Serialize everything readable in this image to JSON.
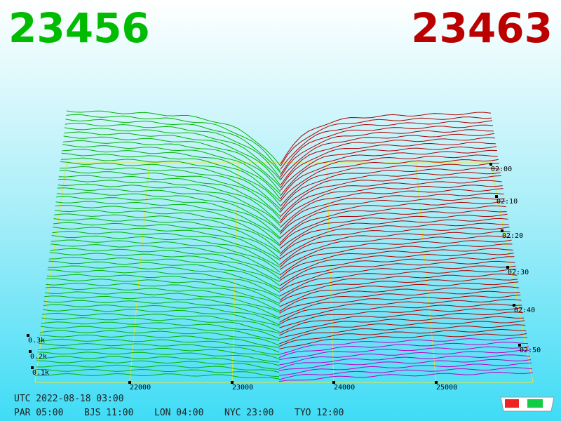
{
  "header": {
    "bid": "23456",
    "ask": "23463"
  },
  "price_axis": {
    "ticks": [
      "22000",
      "23000",
      "24000",
      "25000"
    ]
  },
  "time_axis": {
    "ticks": [
      "02:00",
      "02:10",
      "02:20",
      "02:30",
      "02:40",
      "02:50"
    ]
  },
  "depth_axis": {
    "ticks": [
      "0.3k",
      "0.2k",
      "0.1k"
    ]
  },
  "footer": {
    "utc": "UTC 2022-08-18 03:00",
    "zones": [
      "PAR 05:00",
      "BJS 11:00",
      "LON 04:00",
      "NYC 23:00",
      "TYO 12:00"
    ]
  }
}
